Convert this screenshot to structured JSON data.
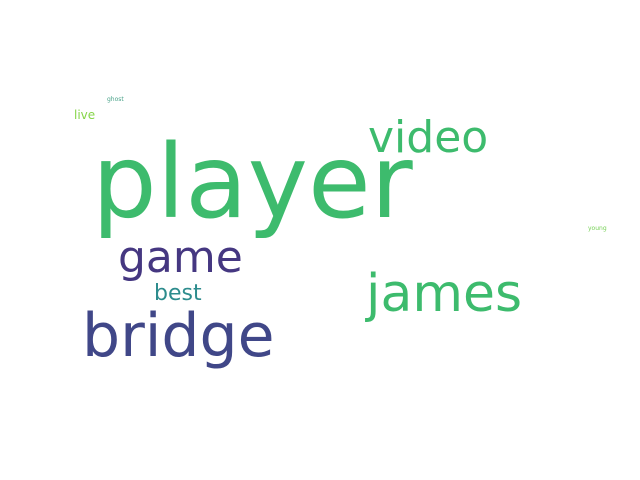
{
  "word_cloud": {
    "background": "#ffffff",
    "words": [
      {
        "id": "player",
        "text": "player",
        "color": "#3dbb6d"
      },
      {
        "id": "video",
        "text": "video",
        "color": "#3dbb6d"
      },
      {
        "id": "james",
        "text": "james",
        "color": "#3dbb6d"
      },
      {
        "id": "bridge",
        "text": "bridge",
        "color": "#404788"
      },
      {
        "id": "game",
        "text": "game",
        "color": "#453781"
      },
      {
        "id": "best",
        "text": "best",
        "color": "#2d8c8d"
      },
      {
        "id": "live",
        "text": "live",
        "color": "#86d549"
      },
      {
        "id": "ghost",
        "text": "ghost",
        "color": "#4aa38a"
      },
      {
        "id": "young",
        "text": "young",
        "color": "#75d054"
      }
    ]
  }
}
